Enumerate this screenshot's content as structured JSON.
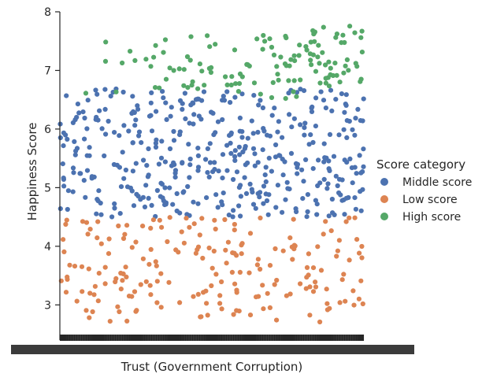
{
  "chart_data": {
    "type": "scatter",
    "title": "",
    "xlabel": "Trust (Government Corruption)",
    "ylabel": "Happiness Score",
    "ylim": [
      2.4,
      8.0
    ],
    "yticks": [
      "3",
      "4",
      "5",
      "6",
      "7",
      "8"
    ],
    "x_categorical": true,
    "x_tick_labels_unreadable": true,
    "grid": false,
    "legend": {
      "title": "Score category",
      "placement": "right",
      "items": [
        {
          "name": "Middle score",
          "color": "#4c72b0"
        },
        {
          "name": "Low score",
          "color": "#dd8452"
        },
        {
          "name": "High score",
          "color": "#55a868"
        }
      ]
    },
    "series": [
      {
        "name": "Middle score",
        "color": "#4c72b0",
        "y_range": [
          4.5,
          6.7
        ],
        "approx_count": 420
      },
      {
        "name": "Low score",
        "color": "#dd8452",
        "y_range": [
          2.7,
          4.5
        ],
        "approx_count": 200
      },
      {
        "name": "High score",
        "color": "#55a868",
        "y_range": [
          6.5,
          7.8
        ],
        "approx_count": 130
      }
    ]
  }
}
